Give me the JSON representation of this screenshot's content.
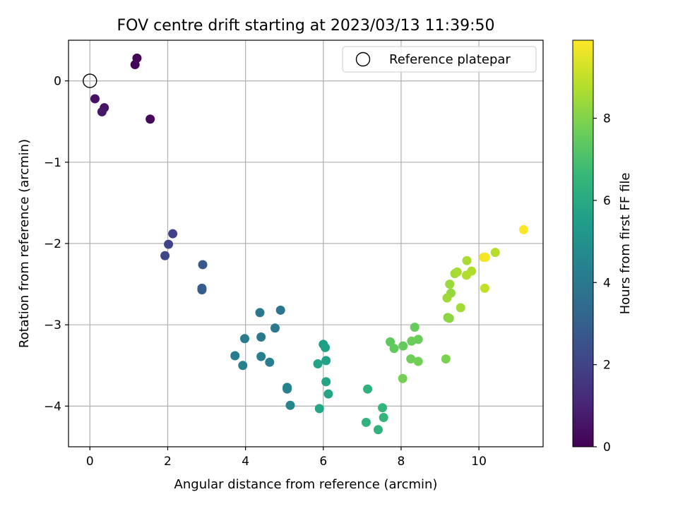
{
  "chart_data": {
    "type": "scatter",
    "title": "FOV centre drift starting at 2023/03/13 11:39:50",
    "xlabel": "Angular distance from reference (arcmin)",
    "ylabel": "Rotation from reference (arcmin)",
    "xlim": [
      -0.55,
      11.65
    ],
    "ylim": [
      -4.5,
      0.5
    ],
    "xticks": [
      0,
      2,
      4,
      6,
      8,
      10
    ],
    "yticks": [
      0,
      -1,
      -2,
      -3,
      -4
    ],
    "xtick_labels": [
      "0",
      "2",
      "4",
      "6",
      "8",
      "10"
    ],
    "ytick_labels": [
      "0",
      "−1",
      "−2",
      "−3",
      "−4"
    ],
    "grid": true,
    "legend": {
      "location": "upper-right",
      "entries": [
        "Reference platepar"
      ]
    },
    "reference_point": {
      "x": 0.0,
      "y": 0.0
    },
    "colorbar": {
      "label": "Hours from first FF file",
      "range": [
        0,
        9.9
      ],
      "ticks": [
        0,
        2,
        4,
        6,
        8
      ],
      "tick_labels": [
        "0",
        "2",
        "4",
        "6",
        "8"
      ],
      "colormap": "viridis",
      "colors": [
        "#440154",
        "#482878",
        "#3e4989",
        "#31688e",
        "#26828e",
        "#1f9e89",
        "#35b779",
        "#6ece58",
        "#b5de2b",
        "#fde725"
      ]
    },
    "series": [
      {
        "x": [
          1.21,
          1.16,
          1.55,
          0.13,
          0.37,
          0.31,
          2.13,
          2.02,
          1.93,
          2.9,
          2.88,
          2.88,
          4.9,
          4.37,
          4.76,
          4.4,
          3.98,
          3.73,
          4.4,
          4.62,
          3.93,
          5.07,
          5.07,
          5.15,
          6.0,
          6.05,
          6.07,
          5.86,
          6.07,
          6.13,
          5.9,
          7.14,
          7.1,
          7.41,
          7.52,
          7.55,
          7.72,
          7.82,
          8.05,
          8.35,
          8.44,
          8.27,
          8.25,
          8.44,
          8.04,
          9.15,
          9.2,
          9.24,
          9.28,
          9.25,
          9.18,
          9.53,
          9.38,
          9.44,
          9.69,
          9.81,
          9.68,
          10.12,
          10.42,
          10.15,
          10.17,
          11.15
        ],
        "y": [
          0.28,
          0.2,
          -0.47,
          -0.22,
          -0.33,
          -0.38,
          -1.88,
          -2.01,
          -2.15,
          -2.26,
          -2.55,
          -2.57,
          -2.82,
          -2.85,
          -3.04,
          -3.15,
          -3.17,
          -3.38,
          -3.39,
          -3.46,
          -3.5,
          -3.77,
          -3.79,
          -3.99,
          -3.24,
          -3.28,
          -3.44,
          -3.48,
          -3.7,
          -3.85,
          -4.03,
          -3.79,
          -4.2,
          -4.29,
          -4.02,
          -4.14,
          -3.21,
          -3.29,
          -3.26,
          -3.03,
          -3.18,
          -3.2,
          -3.42,
          -3.45,
          -3.66,
          -3.42,
          -2.91,
          -2.92,
          -2.61,
          -2.5,
          -2.67,
          -2.79,
          -2.37,
          -2.35,
          -2.21,
          -2.34,
          -2.39,
          -2.17,
          -2.11,
          -2.55,
          -2.17,
          -1.83
        ],
        "hours": [
          0.05,
          0.15,
          0.25,
          0.45,
          0.55,
          0.65,
          1.95,
          2.05,
          2.15,
          2.7,
          2.8,
          2.9,
          3.9,
          3.95,
          4.0,
          4.05,
          4.1,
          4.15,
          4.2,
          4.25,
          4.3,
          4.4,
          4.45,
          4.55,
          5.55,
          5.6,
          5.65,
          5.7,
          5.75,
          5.8,
          5.85,
          6.3,
          6.35,
          6.4,
          6.45,
          6.5,
          7.4,
          7.45,
          7.5,
          7.55,
          7.6,
          7.65,
          7.7,
          7.75,
          7.8,
          7.9,
          8.1,
          8.2,
          8.3,
          8.4,
          8.45,
          8.5,
          8.55,
          8.6,
          8.65,
          8.7,
          8.75,
          9.7,
          8.8,
          9.0,
          9.8,
          9.9
        ]
      }
    ]
  }
}
